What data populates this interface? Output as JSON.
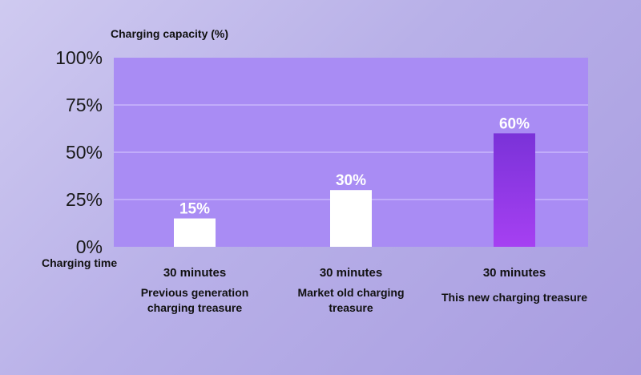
{
  "chart_data": {
    "type": "bar",
    "ylabel": "Charging capacity (%)",
    "xlabel": "Charging time",
    "categories": [
      "30 minutes",
      "30 minutes",
      "30 minutes"
    ],
    "descriptions": [
      [
        "Previous generation",
        "charging treasure"
      ],
      [
        "Market old charging",
        "treasure"
      ],
      [
        "This new charging treasure"
      ]
    ],
    "values": [
      15,
      30,
      60
    ],
    "value_labels": [
      "15%",
      "30%",
      "60%"
    ],
    "ylim": [
      0,
      100
    ],
    "yticks": [
      0,
      25,
      50,
      75,
      100
    ],
    "ytick_labels": [
      "0%",
      "25%",
      "50%",
      "75%",
      "100%"
    ],
    "grid": true,
    "colors": {
      "plot_bg": "#a98cf4",
      "grid": "#d9ccff",
      "bar_default": "#ffffff",
      "bar_highlight_top": "#7a32d8",
      "bar_highlight_bottom": "#a640f2"
    },
    "highlight_index": 2
  }
}
